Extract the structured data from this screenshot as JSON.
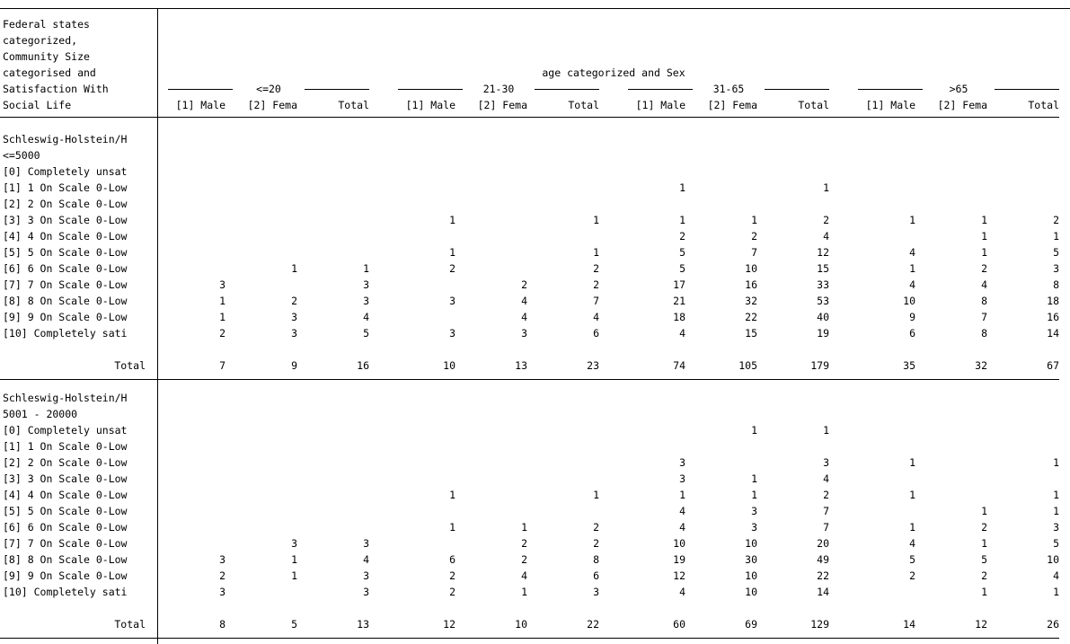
{
  "header": {
    "stub_lines": [
      "Federal states",
      "categorized,",
      "Community Size",
      "categorised and",
      "Satisfaction With",
      "Social Life"
    ],
    "spanner": "age categorized and Sex",
    "groups": [
      "<=20",
      "21-30",
      "31-65",
      ">65"
    ],
    "subcols": [
      "[1] Male",
      "[2] Fema",
      "Total"
    ]
  },
  "row_labels": [
    "[0] Completely unsat",
    "[1] 1 On Scale 0-Low",
    "[2] 2 On Scale 0-Low",
    "[3] 3 On Scale 0-Low",
    "[4] 4 On Scale 0-Low",
    "[5] 5 On Scale 0-Low",
    "[6] 6 On Scale 0-Low",
    "[7] 7 On Scale 0-Low",
    "[8] 8 On Scale 0-Low",
    "[9] 9 On Scale 0-Low",
    "[10] Completely sati"
  ],
  "total_label": "Total",
  "blocks": [
    {
      "state": "Schleswig-Holstein/H",
      "size": "<=5000",
      "rows": [
        [
          "",
          "",
          "",
          "",
          "",
          "",
          "",
          "",
          "",
          "",
          "",
          ""
        ],
        [
          "",
          "",
          "",
          "",
          "",
          "",
          "1",
          "",
          "1",
          "",
          "",
          ""
        ],
        [
          "",
          "",
          "",
          "",
          "",
          "",
          "",
          "",
          "",
          "",
          "",
          ""
        ],
        [
          "",
          "",
          "",
          "1",
          "",
          "1",
          "1",
          "1",
          "2",
          "1",
          "1",
          "2"
        ],
        [
          "",
          "",
          "",
          "",
          "",
          "",
          "2",
          "2",
          "4",
          "",
          "1",
          "1"
        ],
        [
          "",
          "",
          "",
          "1",
          "",
          "1",
          "5",
          "7",
          "12",
          "4",
          "1",
          "5"
        ],
        [
          "",
          "1",
          "1",
          "2",
          "",
          "2",
          "5",
          "10",
          "15",
          "1",
          "2",
          "3"
        ],
        [
          "3",
          "",
          "3",
          "",
          "2",
          "2",
          "17",
          "16",
          "33",
          "4",
          "4",
          "8"
        ],
        [
          "1",
          "2",
          "3",
          "3",
          "4",
          "7",
          "21",
          "32",
          "53",
          "10",
          "8",
          "18"
        ],
        [
          "1",
          "3",
          "4",
          "",
          "4",
          "4",
          "18",
          "22",
          "40",
          "9",
          "7",
          "16"
        ],
        [
          "2",
          "3",
          "5",
          "3",
          "3",
          "6",
          "4",
          "15",
          "19",
          "6",
          "8",
          "14"
        ]
      ],
      "totals": [
        "7",
        "9",
        "16",
        "10",
        "13",
        "23",
        "74",
        "105",
        "179",
        "35",
        "32",
        "67"
      ]
    },
    {
      "state": "Schleswig-Holstein/H",
      "size": "5001 - 20000",
      "rows": [
        [
          "",
          "",
          "",
          "",
          "",
          "",
          "",
          "1",
          "1",
          "",
          "",
          ""
        ],
        [
          "",
          "",
          "",
          "",
          "",
          "",
          "",
          "",
          "",
          "",
          "",
          ""
        ],
        [
          "",
          "",
          "",
          "",
          "",
          "",
          "3",
          "",
          "3",
          "1",
          "",
          "1"
        ],
        [
          "",
          "",
          "",
          "",
          "",
          "",
          "3",
          "1",
          "4",
          "",
          "",
          ""
        ],
        [
          "",
          "",
          "",
          "1",
          "",
          "1",
          "1",
          "1",
          "2",
          "1",
          "",
          "1"
        ],
        [
          "",
          "",
          "",
          "",
          "",
          "",
          "4",
          "3",
          "7",
          "",
          "1",
          "1"
        ],
        [
          "",
          "",
          "",
          "1",
          "1",
          "2",
          "4",
          "3",
          "7",
          "1",
          "2",
          "3"
        ],
        [
          "",
          "3",
          "3",
          "",
          "2",
          "2",
          "10",
          "10",
          "20",
          "4",
          "1",
          "5"
        ],
        [
          "3",
          "1",
          "4",
          "6",
          "2",
          "8",
          "19",
          "30",
          "49",
          "5",
          "5",
          "10"
        ],
        [
          "2",
          "1",
          "3",
          "2",
          "4",
          "6",
          "12",
          "10",
          "22",
          "2",
          "2",
          "4"
        ],
        [
          "3",
          "",
          "3",
          "2",
          "1",
          "3",
          "4",
          "10",
          "14",
          "",
          "1",
          "1"
        ]
      ],
      "totals": [
        "8",
        "5",
        "13",
        "12",
        "10",
        "22",
        "60",
        "69",
        "129",
        "14",
        "12",
        "26"
      ]
    }
  ]
}
